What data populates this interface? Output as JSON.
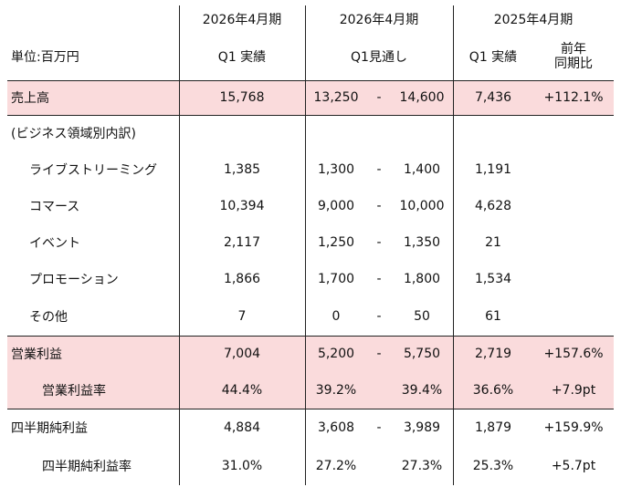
{
  "header": {
    "unit_label": "単位:百万円",
    "col_a_period": "2026年4月期",
    "col_a_sub": "Q1 実績",
    "col_b_period": "2026年4月期",
    "col_b_sub": "Q1見通し",
    "col_c_period": "2025年4月期",
    "col_c_sub": "Q1 実績",
    "col_d_line1": "前年",
    "col_d_line2": "同期比"
  },
  "rows": [
    {
      "label": "売上高",
      "actual": "15,768",
      "low": "13,250",
      "dash": "-",
      "high": "14,600",
      "prev": "7,436",
      "yoy": "+112.1%"
    },
    {
      "label": "(ビジネス領域別内訳)",
      "actual": "",
      "low": "",
      "dash": "",
      "high": "",
      "prev": "",
      "yoy": ""
    },
    {
      "label": "ライブストリーミング",
      "actual": "1,385",
      "low": "1,300",
      "dash": "-",
      "high": "1,400",
      "prev": "1,191",
      "yoy": ""
    },
    {
      "label": "コマース",
      "actual": "10,394",
      "low": "9,000",
      "dash": "-",
      "high": "10,000",
      "prev": "4,628",
      "yoy": ""
    },
    {
      "label": "イベント",
      "actual": "2,117",
      "low": "1,250",
      "dash": "-",
      "high": "1,350",
      "prev": "21",
      "yoy": ""
    },
    {
      "label": "プロモーション",
      "actual": "1,866",
      "low": "1,700",
      "dash": "-",
      "high": "1,800",
      "prev": "1,534",
      "yoy": ""
    },
    {
      "label": "その他",
      "actual": "7",
      "low": "0",
      "dash": "-",
      "high": "50",
      "prev": "61",
      "yoy": ""
    },
    {
      "label": "営業利益",
      "actual": "7,004",
      "low": "5,200",
      "dash": "-",
      "high": "5,750",
      "prev": "2,719",
      "yoy": "+157.6%"
    },
    {
      "label": "営業利益率",
      "actual": "44.4%",
      "low": "39.2%",
      "dash": "",
      "high": "39.4%",
      "prev": "36.6%",
      "yoy": "+7.9pt"
    },
    {
      "label": "四半期純利益",
      "actual": "4,884",
      "low": "3,608",
      "dash": "-",
      "high": "3,989",
      "prev": "1,879",
      "yoy": "+159.9%"
    },
    {
      "label": "四半期純利益率",
      "actual": "31.0%",
      "low": "27.2%",
      "dash": "",
      "high": "27.3%",
      "prev": "25.3%",
      "yoy": "+5.7pt"
    }
  ],
  "colors": {
    "highlight": "#fadbdc",
    "border": "#222222"
  }
}
